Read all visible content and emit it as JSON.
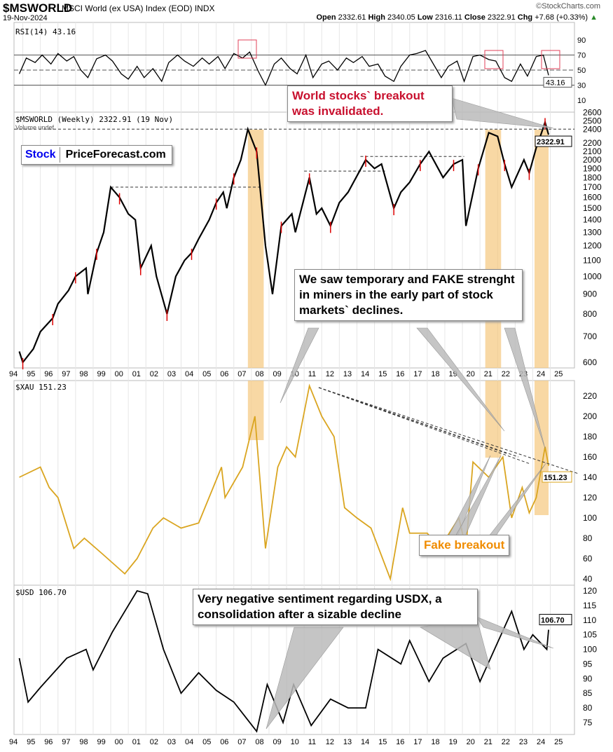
{
  "header": {
    "symbol": "$MSWORLD",
    "name": "MSCI World (ex USA) Index (EOD)",
    "exchange": "INDX",
    "date": "19-Nov-2024",
    "source": "©StockCharts.com",
    "open_label": "Open",
    "open": "2332.61",
    "high_label": "High",
    "high": "2340.05",
    "low_label": "Low",
    "low": "2316.11",
    "close_label": "Close",
    "close": "2322.91",
    "chg_label": "Chg",
    "chg": "+7.68 (+0.33%)",
    "up_arrow": "▲"
  },
  "logo": {
    "part1": "Stock",
    "part2": "PriceForecast.com"
  },
  "annotations": {
    "world": "World stocks` breakout was invalidated.",
    "miners": "We saw temporary and FAKE strenght in miners in the early part of stock markets` declines.",
    "fake": "Fake breakout",
    "usd": "Very negative sentiment regarding USDX, a consolidation after a sizable decline"
  },
  "colors": {
    "xau": "#DAA520",
    "band": "#F5C77E",
    "red_box": "#E0405A",
    "annotation_red": "#C8102E",
    "fake_orange": "#F08C00"
  },
  "chart_data": [
    {
      "type": "line",
      "panel": "rsi",
      "title": "RSI(14) 43.16",
      "last_value": "43.16",
      "y_ticks": [
        90,
        70,
        50,
        30,
        10
      ],
      "ylim": [
        0,
        100
      ],
      "reference_lines": [
        70,
        50,
        30
      ],
      "x": [
        1994.8,
        1995.2,
        1995.7,
        1996.1,
        1996.6,
        1997.0,
        1997.5,
        1997.9,
        1998.3,
        1998.7,
        1999.2,
        1999.7,
        2000.1,
        2000.6,
        2001.0,
        2001.5,
        2001.9,
        2002.4,
        2002.9,
        2003.3,
        2003.8,
        2004.2,
        2004.7,
        2005.2,
        2005.6,
        2006.1,
        2006.5,
        2007.0,
        2007.5,
        2007.9,
        2008.4,
        2008.8,
        2009.3,
        2009.7,
        2010.2,
        2010.6,
        2011.1,
        2011.5,
        2012.0,
        2012.4,
        2012.9,
        2013.4,
        2013.8,
        2014.3,
        2014.7,
        2015.2,
        2015.6,
        2016.1,
        2016.5,
        2017.0,
        2017.4,
        2017.9,
        2018.3,
        2018.8,
        2019.2,
        2019.7,
        2020.1,
        2020.6,
        2021.0,
        2021.5,
        2021.9,
        2022.4,
        2022.8,
        2023.3,
        2023.7,
        2024.2,
        2024.6,
        2024.9
      ],
      "values": [
        45,
        66,
        60,
        70,
        58,
        72,
        62,
        68,
        50,
        40,
        65,
        70,
        62,
        45,
        38,
        55,
        40,
        52,
        35,
        60,
        70,
        62,
        55,
        66,
        58,
        68,
        52,
        72,
        66,
        74,
        48,
        30,
        58,
        66,
        52,
        45,
        70,
        40,
        58,
        62,
        50,
        66,
        60,
        68,
        55,
        58,
        42,
        35,
        55,
        70,
        72,
        76,
        60,
        40,
        55,
        62,
        35,
        68,
        70,
        64,
        62,
        40,
        35,
        58,
        42,
        68,
        70,
        43.16
      ]
    },
    {
      "type": "candlestick",
      "panel": "msworld",
      "title": "$MSWORLD (Weekly) 2322.91 (19 Nov)",
      "subtitle": "Volume undef",
      "last_value": "2322.91",
      "scale": "log",
      "ylim": [
        580,
        2650
      ],
      "y_ticks": [
        2600,
        2500,
        2400,
        2200,
        2100,
        2000,
        1900,
        1800,
        1700,
        1600,
        1500,
        1400,
        1300,
        1200,
        1100,
        1000,
        900,
        800,
        700,
        600
      ],
      "x": [
        1994.8,
        1995.0,
        1995.6,
        1996.0,
        1996.7,
        1997.0,
        1997.6,
        1998.0,
        1998.6,
        1998.7,
        1999.2,
        1999.6,
        2000.0,
        2000.5,
        2001.0,
        2001.4,
        2001.7,
        2002.3,
        2002.6,
        2003.2,
        2003.7,
        2004.2,
        2004.6,
        2005.0,
        2005.6,
        2006.0,
        2006.4,
        2006.6,
        2007.0,
        2007.4,
        2007.8,
        2008.3,
        2008.8,
        2009.2,
        2009.7,
        2010.3,
        2010.5,
        2011.3,
        2011.7,
        2012.0,
        2012.5,
        2013.0,
        2013.5,
        2014.5,
        2015.0,
        2015.4,
        2016.1,
        2016.5,
        2017.0,
        2017.6,
        2018.1,
        2018.9,
        2019.5,
        2020.0,
        2020.2,
        2020.9,
        2021.5,
        2022.0,
        2022.4,
        2022.8,
        2023.5,
        2023.8,
        2024.2,
        2024.5,
        2024.7,
        2024.9
      ],
      "values": [
        640,
        600,
        650,
        720,
        780,
        850,
        920,
        1000,
        1050,
        900,
        1150,
        1300,
        1700,
        1600,
        1450,
        1400,
        1050,
        1200,
        1000,
        800,
        1000,
        1100,
        1150,
        1250,
        1400,
        1550,
        1650,
        1500,
        1800,
        2000,
        2400,
        2100,
        1200,
        900,
        1350,
        1450,
        1300,
        1800,
        1450,
        1500,
        1350,
        1550,
        1650,
        2000,
        1900,
        1950,
        1500,
        1650,
        1750,
        1950,
        2100,
        1800,
        1950,
        2000,
        1350,
        1900,
        2350,
        2300,
        1950,
        1700,
        2000,
        1850,
        2150,
        2350,
        2500,
        2323
      ]
    },
    {
      "type": "line",
      "panel": "xau",
      "title": "$XAU 151.23",
      "last_value": "151.23",
      "ylim": [
        35,
        235
      ],
      "y_ticks": [
        220,
        200,
        180,
        160,
        140,
        120,
        100,
        80,
        60,
        40
      ],
      "x": [
        1994.8,
        1996.0,
        1996.5,
        1997.0,
        1997.9,
        1998.5,
        1999.5,
        2000.8,
        2001.5,
        2002.4,
        2003.0,
        2004.0,
        2005.0,
        2006.3,
        2006.5,
        2007.5,
        2008.2,
        2008.8,
        2009.5,
        2010.0,
        2010.5,
        2011.3,
        2012.0,
        2012.7,
        2013.3,
        2014.0,
        2014.8,
        2015.9,
        2016.6,
        2017.0,
        2018.0,
        2018.7,
        2019.8,
        2020.2,
        2020.6,
        2021.5,
        2022.3,
        2022.8,
        2023.4,
        2023.8,
        2024.2,
        2024.7,
        2024.9
      ],
      "values": [
        140,
        150,
        130,
        120,
        70,
        80,
        65,
        45,
        60,
        90,
        100,
        90,
        95,
        150,
        120,
        150,
        200,
        70,
        150,
        170,
        160,
        230,
        200,
        180,
        110,
        100,
        90,
        40,
        110,
        85,
        85,
        70,
        100,
        70,
        155,
        140,
        160,
        100,
        130,
        105,
        120,
        170,
        151.23
      ]
    },
    {
      "type": "line",
      "panel": "usd",
      "title": "$USD 106.70",
      "last_value": "106.70",
      "ylim": [
        72,
        122
      ],
      "y_ticks": [
        120,
        115,
        110,
        105,
        100,
        95,
        90,
        85,
        80,
        75
      ],
      "x": [
        1994.8,
        1995.3,
        1996.0,
        1997.5,
        1998.6,
        1999.0,
        2000.1,
        2001.5,
        2002.1,
        2003.0,
        2004.0,
        2005.0,
        2006.0,
        2007.0,
        2008.3,
        2008.9,
        2009.8,
        2010.4,
        2011.4,
        2012.5,
        2013.5,
        2014.5,
        2015.2,
        2016.5,
        2017.0,
        2018.1,
        2018.9,
        2020.2,
        2021.0,
        2022.8,
        2023.5,
        2024.0,
        2024.8,
        2024.9
      ],
      "values": [
        97,
        82,
        87,
        97,
        100,
        93,
        106,
        120,
        119,
        100,
        85,
        92,
        86,
        82,
        72,
        88,
        75,
        88,
        74,
        83,
        80,
        80,
        100,
        95,
        103,
        89,
        97,
        102,
        89,
        113,
        100,
        105,
        100,
        106.7
      ]
    },
    {
      "type": "axis",
      "x_tick_labels": [
        "94",
        "95",
        "96",
        "97",
        "98",
        "99",
        "00",
        "01",
        "02",
        "03",
        "04",
        "05",
        "06",
        "07",
        "08",
        "09",
        "10",
        "11",
        "12",
        "13",
        "14",
        "15",
        "16",
        "17",
        "18",
        "19",
        "20",
        "21",
        "22",
        "23",
        "24",
        "25"
      ]
    }
  ]
}
